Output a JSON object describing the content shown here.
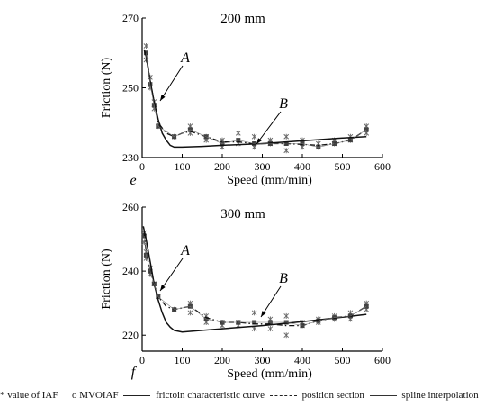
{
  "chart_data": [
    {
      "type": "line",
      "title": "200 mm",
      "panel_letter": "e",
      "xlabel": "Speed  (mm/min)",
      "ylabel": "Friction  (N)",
      "xlim": [
        0,
        600
      ],
      "ylim": [
        230,
        270
      ],
      "xticks": [
        0,
        100,
        200,
        300,
        400,
        500,
        600
      ],
      "yticks": [
        230,
        250,
        270
      ],
      "annotations": [
        {
          "text": "A",
          "x": 30,
          "y": 246
        },
        {
          "text": "B",
          "x": 285,
          "y": 234
        }
      ],
      "series": [
        {
          "name": "value of IAF",
          "kind": "points",
          "x": [
            10,
            10,
            20,
            20,
            30,
            30,
            40,
            80,
            120,
            120,
            160,
            160,
            200,
            200,
            240,
            240,
            280,
            280,
            320,
            320,
            360,
            360,
            400,
            400,
            440,
            440,
            480,
            480,
            520,
            520,
            560,
            560
          ],
          "y": [
            262,
            258,
            253,
            250,
            246,
            244,
            239,
            236,
            239,
            237,
            236,
            235,
            235,
            233,
            237,
            234,
            236,
            233,
            235,
            234,
            236,
            232,
            235,
            233,
            234,
            233,
            235,
            234,
            236,
            235,
            239,
            237
          ]
        },
        {
          "name": "MVOIAF",
          "kind": "points",
          "x": [
            10,
            20,
            30,
            40,
            80,
            120,
            160,
            200,
            240,
            280,
            320,
            360,
            400,
            440,
            480,
            520,
            560
          ],
          "y": [
            260,
            251,
            245,
            239,
            236,
            238,
            236,
            234,
            235,
            234,
            234,
            234,
            234,
            233,
            234,
            235,
            238
          ]
        },
        {
          "name": "frictoin characteristic curve",
          "kind": "line",
          "x": [
            5,
            10,
            20,
            30,
            40,
            50,
            60,
            70,
            80,
            100,
            150,
            200,
            300,
            400,
            500,
            560
          ],
          "y": [
            261,
            259,
            252,
            246,
            241,
            237,
            235,
            233.5,
            233,
            233,
            233.2,
            233.5,
            234,
            234.8,
            235.6,
            236
          ]
        },
        {
          "name": "position section",
          "kind": "dashdot",
          "x": [
            10,
            20,
            30,
            40,
            60,
            80,
            100,
            120,
            160,
            200,
            240,
            280,
            320,
            360,
            400,
            440,
            480,
            520,
            560
          ],
          "y": [
            260,
            252,
            246,
            240,
            237,
            236,
            237,
            237.5,
            236,
            234.5,
            234.5,
            234,
            234,
            234,
            233.8,
            233.5,
            234,
            235,
            238
          ]
        },
        {
          "name": "spline interpolation",
          "kind": "thin",
          "x": [
            10,
            20,
            30,
            40,
            80,
            120,
            160,
            200,
            240,
            280,
            320,
            360,
            400,
            440,
            480,
            520,
            560
          ],
          "y": [
            260,
            251,
            245,
            239,
            236,
            238,
            236,
            234,
            235,
            234,
            234,
            234,
            234,
            233,
            234,
            235,
            238
          ]
        }
      ]
    },
    {
      "type": "line",
      "title": "300 mm",
      "panel_letter": "f",
      "xlabel": "Speed  (mm/min)",
      "ylabel": "Friction  (N)",
      "xlim": [
        0,
        600
      ],
      "ylim": [
        215,
        260
      ],
      "xticks": [
        0,
        100,
        200,
        300,
        400,
        500,
        600
      ],
      "yticks": [
        220,
        240,
        260
      ],
      "annotations": [
        {
          "text": "A",
          "x": 35,
          "y": 233
        },
        {
          "text": "B",
          "x": 275,
          "y": 224
        }
      ],
      "series": [
        {
          "name": "value of IAF",
          "kind": "points",
          "x": [
            5,
            5,
            10,
            10,
            20,
            20,
            30,
            40,
            80,
            120,
            120,
            160,
            160,
            200,
            200,
            240,
            240,
            280,
            280,
            320,
            320,
            360,
            360,
            400,
            400,
            440,
            440,
            480,
            480,
            520,
            520,
            560,
            560
          ],
          "y": [
            252,
            249,
            246,
            244,
            241,
            239,
            236,
            232,
            228,
            230,
            227,
            226,
            224,
            224,
            223,
            224,
            223,
            227,
            222,
            225,
            222,
            226,
            220,
            224,
            223,
            225,
            224,
            226,
            225,
            227,
            225,
            230,
            228
          ]
        },
        {
          "name": "MVOIAF",
          "kind": "points",
          "x": [
            5,
            10,
            20,
            30,
            40,
            80,
            120,
            160,
            200,
            240,
            280,
            320,
            360,
            400,
            440,
            480,
            520,
            560
          ],
          "y": [
            251,
            245,
            240,
            236,
            232,
            228,
            229,
            225,
            224,
            224,
            224,
            224,
            224,
            223,
            224.5,
            225.5,
            226,
            229
          ]
        },
        {
          "name": "frictoin characteristic curve",
          "kind": "line",
          "x": [
            3,
            10,
            20,
            30,
            40,
            50,
            60,
            70,
            80,
            100,
            150,
            200,
            300,
            400,
            500,
            560
          ],
          "y": [
            254,
            250,
            243,
            236,
            231,
            227,
            224,
            222.5,
            221.5,
            221,
            221.5,
            222,
            223,
            224.2,
            225.6,
            226.5
          ]
        },
        {
          "name": "position section",
          "kind": "dashdot",
          "x": [
            5,
            10,
            20,
            30,
            40,
            60,
            80,
            100,
            120,
            160,
            200,
            240,
            280,
            320,
            360,
            400,
            440,
            480,
            520,
            560
          ],
          "y": [
            252,
            246,
            240,
            236,
            232,
            229,
            228,
            228.5,
            229,
            225.5,
            224,
            224,
            223.5,
            223.5,
            223,
            223,
            224.5,
            225.5,
            226,
            229
          ]
        },
        {
          "name": "spline interpolation",
          "kind": "thin",
          "x": [
            5,
            10,
            20,
            30,
            40,
            80,
            120,
            160,
            200,
            240,
            280,
            320,
            360,
            400,
            440,
            480,
            520,
            560
          ],
          "y": [
            251,
            245,
            240,
            236,
            232,
            228,
            229,
            225,
            224,
            224,
            224,
            224,
            224,
            223,
            224.5,
            225.5,
            226,
            229
          ]
        }
      ]
    }
  ],
  "legend": {
    "iaf": "* value of IAF",
    "mvoiaf": "o MVOIAF",
    "curve": "frictoin characteristic curve",
    "section": "position section",
    "spline": "spline interpolation"
  }
}
